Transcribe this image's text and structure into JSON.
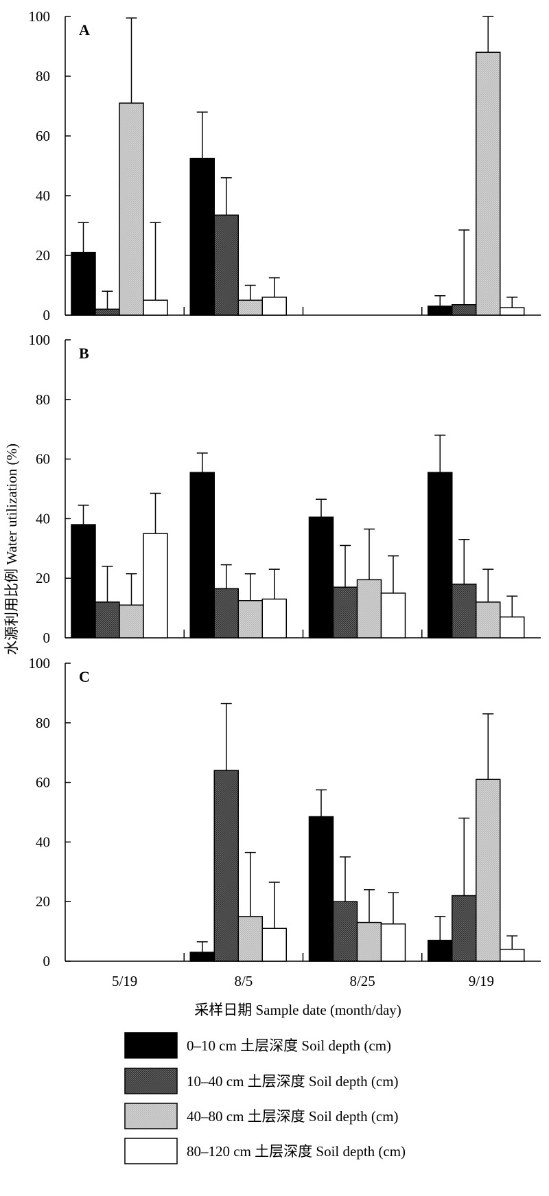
{
  "chart_data": {
    "type": "bar",
    "categories": [
      "5/19",
      "8/5",
      "8/25",
      "9/19"
    ],
    "ylabel": "水源利用比例 Water utilization (%)",
    "xlabel": "采样日期 Sample date (month/day)",
    "ylim": [
      0,
      100
    ],
    "yticks": [
      0,
      20,
      40,
      60,
      80,
      100
    ],
    "legend": {
      "placement": "bottom",
      "entries": [
        "0–10 cm 土层深度 Soil depth (cm)",
        "10–40 cm 土层深度  Soil depth (cm)",
        "40–80 cm 土层深度  Soil depth (cm)",
        "80–120 cm 土层深度  Soil depth (cm)"
      ]
    },
    "series_colors": [
      "#000000",
      "#4d4d4d",
      "#c8c8c8",
      "#ffffff"
    ],
    "panels": [
      {
        "label": "A",
        "values": [
          [
            21,
            2,
            71,
            5
          ],
          [
            52.5,
            33.5,
            5,
            6
          ],
          [
            null,
            null,
            null,
            null
          ],
          [
            3,
            3.5,
            88,
            2.5
          ]
        ],
        "errors": [
          [
            10,
            6,
            28.5,
            26
          ],
          [
            15.5,
            12.5,
            5,
            6.5
          ],
          [
            null,
            null,
            null,
            null
          ],
          [
            3.5,
            25,
            12,
            3.5
          ]
        ]
      },
      {
        "label": "B",
        "values": [
          [
            38,
            12,
            11,
            35
          ],
          [
            55.5,
            16.5,
            12.5,
            13
          ],
          [
            40.5,
            17,
            19.5,
            15
          ],
          [
            55.5,
            18,
            12,
            7
          ]
        ],
        "errors": [
          [
            6.5,
            12,
            10.5,
            13.5
          ],
          [
            6.5,
            8,
            9,
            10
          ],
          [
            6,
            14,
            17,
            12.5
          ],
          [
            12.5,
            15,
            11,
            7
          ]
        ]
      },
      {
        "label": "C",
        "values": [
          [
            null,
            null,
            null,
            null
          ],
          [
            3,
            64,
            15,
            11
          ],
          [
            48.5,
            20,
            13,
            12.5
          ],
          [
            7,
            22,
            61,
            4
          ]
        ],
        "errors": [
          [
            null,
            null,
            null,
            null
          ],
          [
            3.5,
            22.5,
            21.5,
            15.5
          ],
          [
            9,
            15,
            11,
            10.5
          ],
          [
            8,
            26,
            22,
            4.5
          ]
        ]
      }
    ]
  }
}
